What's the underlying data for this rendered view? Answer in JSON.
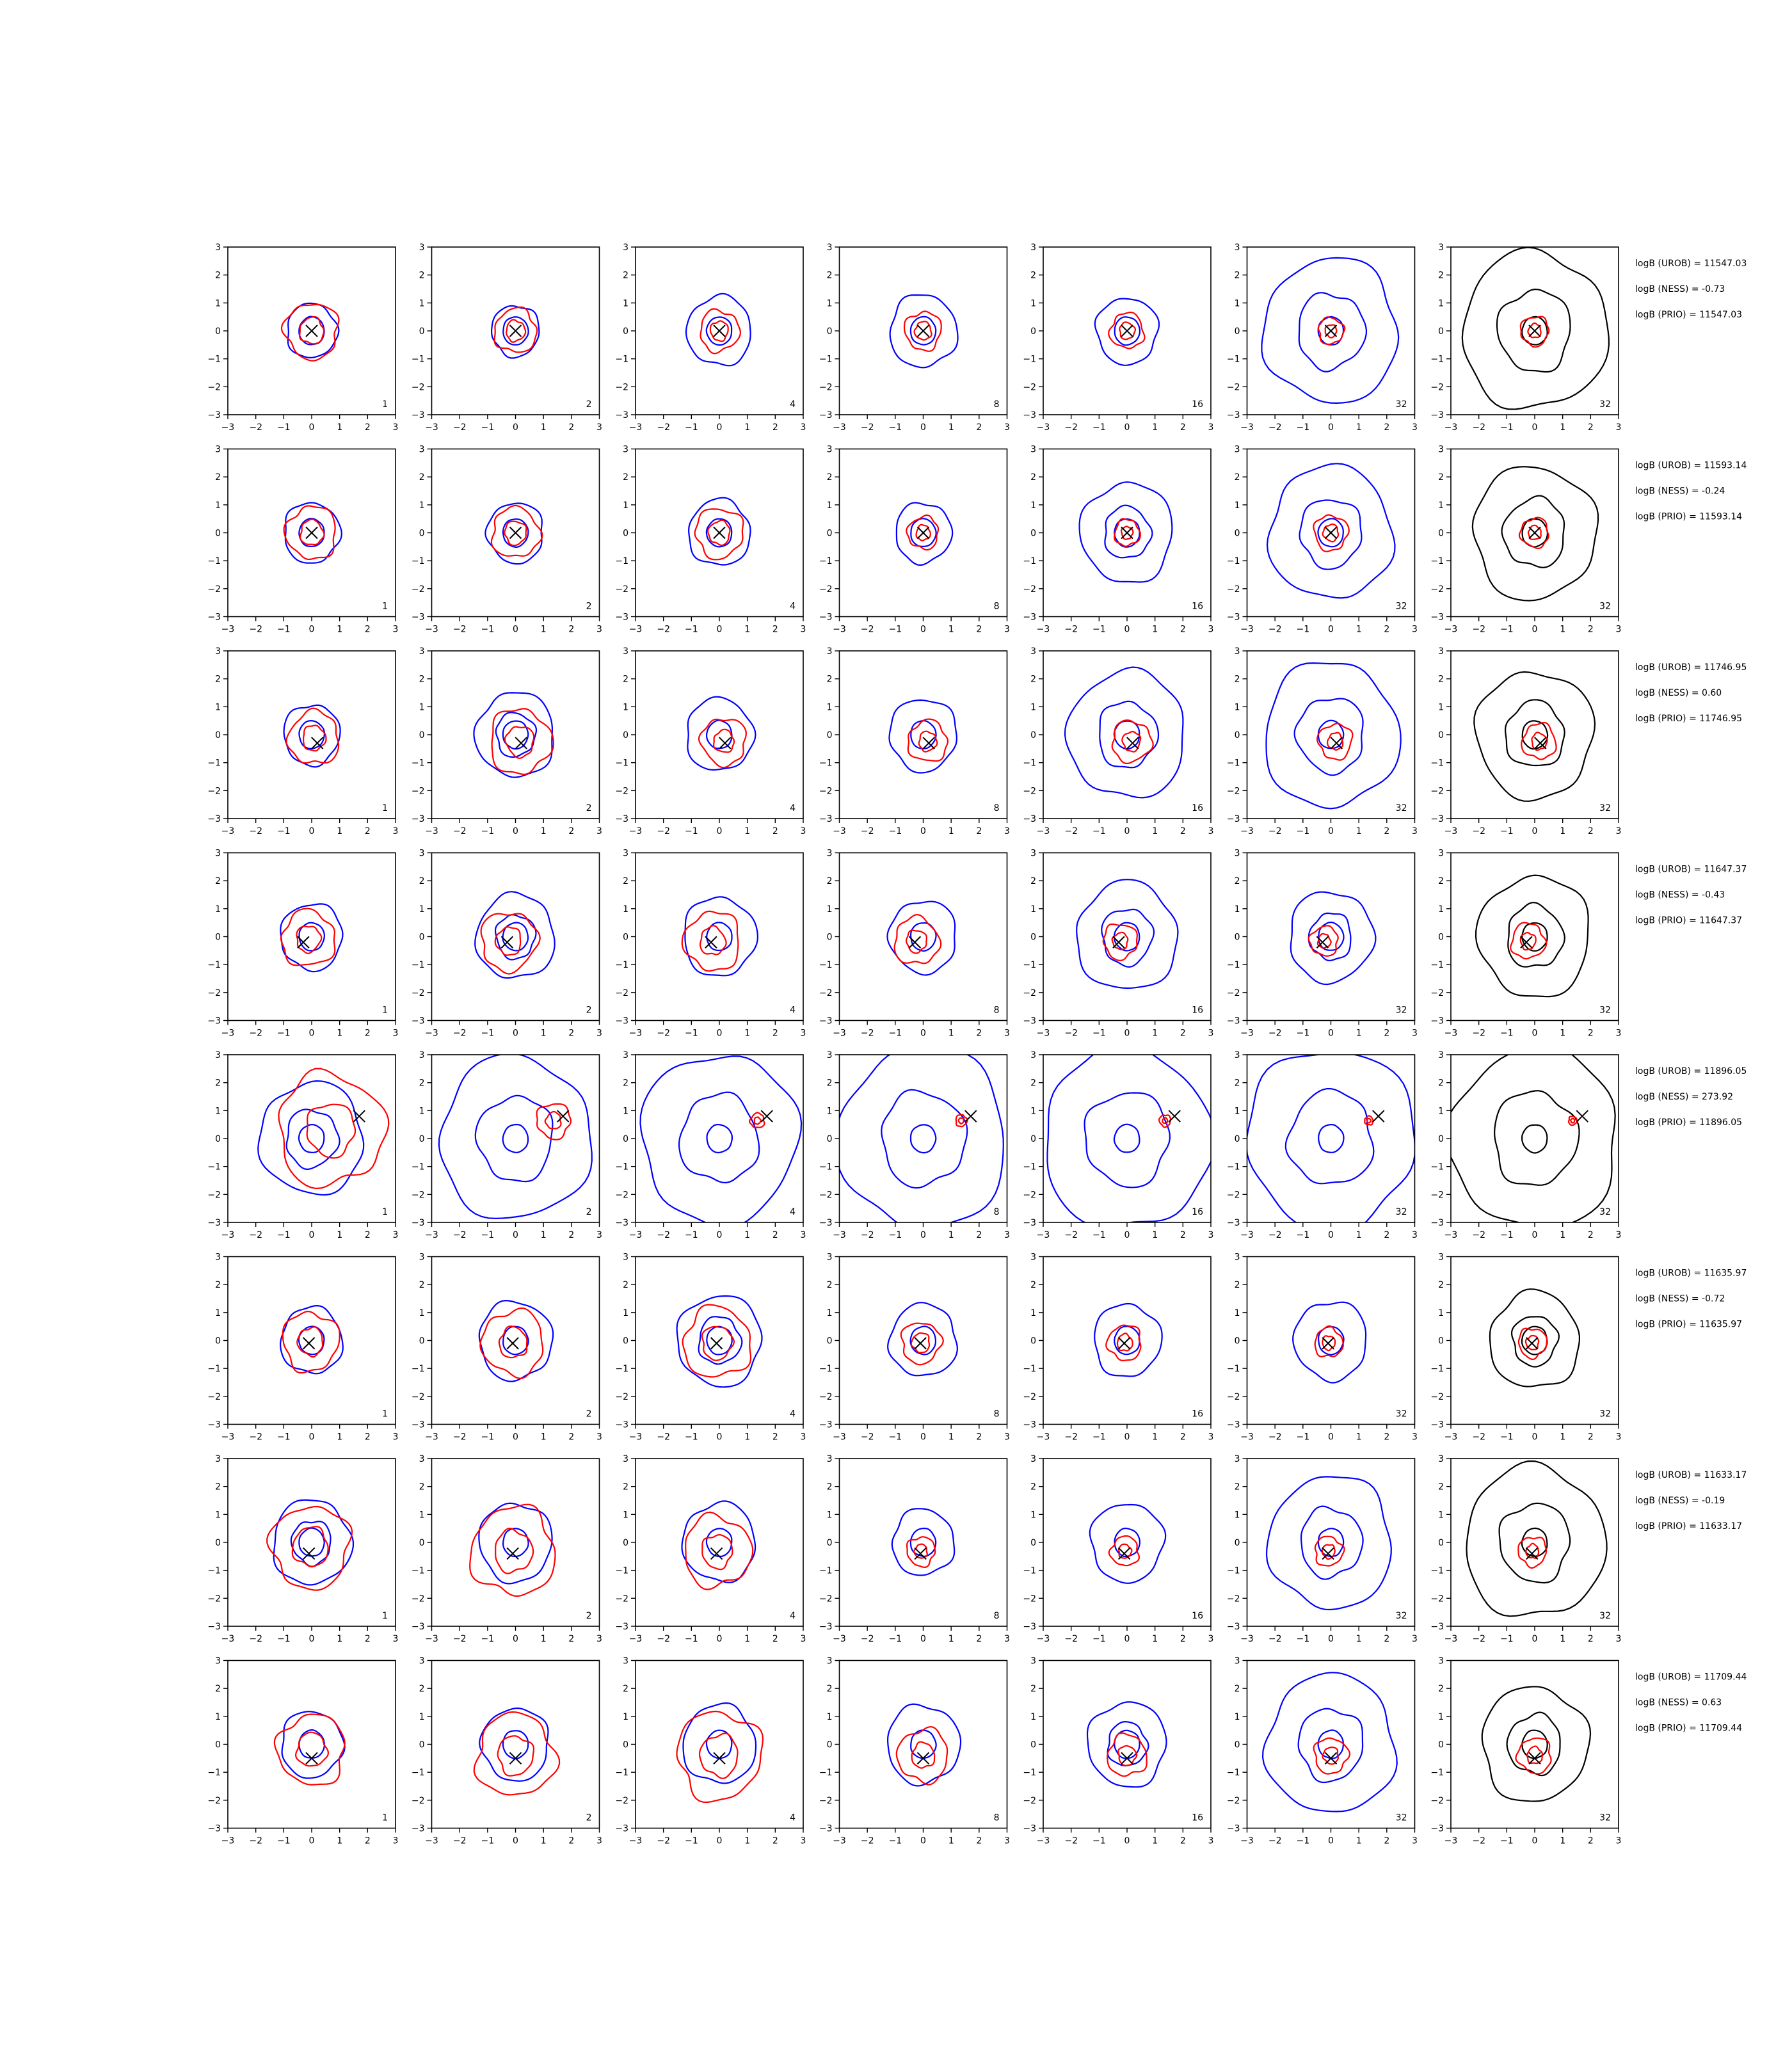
{
  "chart_data": {
    "type": "contour-grid",
    "xlim": [
      -3,
      3
    ],
    "ylim": [
      -3,
      3
    ],
    "xticks": [
      -3,
      -2,
      -1,
      0,
      1,
      2,
      3
    ],
    "yticks": [
      -3,
      -2,
      -1,
      0,
      1,
      2,
      3
    ],
    "grid": false,
    "columns": [
      {
        "label": "1",
        "color": "#0000ff"
      },
      {
        "label": "2",
        "color": "#0000ff"
      },
      {
        "label": "4",
        "color": "#0000ff"
      },
      {
        "label": "8",
        "color": "#0000ff"
      },
      {
        "label": "16",
        "color": "#0000ff"
      },
      {
        "label": "32",
        "color": "#0000ff"
      },
      {
        "label": "32",
        "color": "#000000"
      }
    ],
    "inner_color": "#ff0000",
    "marker_color": "#000000",
    "rows": [
      {
        "marker": [
          0.0,
          0.0
        ],
        "blue_sizes": [
          0.9,
          0.85,
          1.15,
          1.2,
          1.1,
          2.4,
          2.6
        ],
        "red_sizes": [
          0.95,
          0.75,
          0.7,
          0.65,
          0.6,
          0.45,
          0.5
        ],
        "annotations": [
          "logB (UROB) = 11547.03",
          "logB (NESS) = -0.73",
          "logB (PRIO) = 11547.03"
        ]
      },
      {
        "marker": [
          0.0,
          0.0
        ],
        "blue_sizes": [
          1.0,
          1.0,
          1.1,
          1.0,
          1.65,
          2.2,
          2.2
        ],
        "red_sizes": [
          0.9,
          0.85,
          0.85,
          0.55,
          0.45,
          0.6,
          0.5
        ],
        "annotations": [
          "logB (UROB) = 11593.14",
          "logB (NESS) = -0.24",
          "logB (PRIO) = 11593.14"
        ]
      },
      {
        "marker": [
          0.2,
          -0.3
        ],
        "blue_sizes": [
          1.0,
          1.4,
          1.2,
          1.2,
          2.1,
          2.4,
          2.1
        ],
        "red_sizes": [
          0.9,
          1.1,
          0.8,
          0.7,
          0.7,
          0.6,
          0.6
        ],
        "annotations": [
          "logB (UROB) = 11746.95",
          "logB (NESS) = 0.60",
          "logB (PRIO) = 11746.95"
        ]
      },
      {
        "marker": [
          -0.3,
          -0.2
        ],
        "blue_sizes": [
          1.1,
          1.4,
          1.3,
          1.2,
          1.8,
          1.5,
          2.0
        ],
        "red_sizes": [
          0.95,
          1.0,
          1.0,
          0.8,
          0.6,
          0.5,
          0.6
        ],
        "annotations": [
          "logB (UROB) = 11647.37",
          "logB (NESS) = -0.43",
          "logB (PRIO) = 11647.37"
        ]
      },
      {
        "marker": [
          1.7,
          0.8
        ],
        "blue_sizes": [
          1.85,
          2.7,
          2.8,
          3.0,
          3.0,
          3.0,
          3.0
        ],
        "red_sizes": [
          1.9,
          0.6,
          0.25,
          0.2,
          0.2,
          0.15,
          0.15
        ],
        "annotations": [
          "logB (UROB) = 11896.05",
          "logB (NESS) = 273.92",
          "logB (PRIO) = 11896.05"
        ]
      },
      {
        "marker": [
          -0.1,
          -0.1
        ],
        "blue_sizes": [
          1.1,
          1.3,
          1.5,
          1.2,
          1.2,
          1.3,
          1.6
        ],
        "red_sizes": [
          1.0,
          1.1,
          1.2,
          0.7,
          0.6,
          0.5,
          0.5
        ],
        "annotations": [
          "logB (UROB) = 11635.97",
          "logB (NESS) = -0.72",
          "logB (PRIO) = 11635.97"
        ]
      },
      {
        "marker": [
          -0.1,
          -0.4
        ],
        "blue_sizes": [
          1.4,
          1.3,
          1.3,
          1.1,
          1.3,
          2.2,
          2.5
        ],
        "red_sizes": [
          1.4,
          1.5,
          1.2,
          0.5,
          0.5,
          0.5,
          0.5
        ],
        "annotations": [
          "logB (UROB) = 11633.17",
          "logB (NESS) = -0.19",
          "logB (PRIO) = 11633.17"
        ]
      },
      {
        "marker": [
          0.0,
          -0.5
        ],
        "blue_sizes": [
          1.1,
          1.2,
          1.3,
          1.3,
          1.4,
          2.3,
          1.9
        ],
        "red_sizes": [
          1.2,
          1.4,
          1.5,
          0.9,
          0.7,
          0.6,
          0.6
        ],
        "annotations": [
          "logB (UROB) = 11709.44",
          "logB (NESS) = 0.63",
          "logB (PRIO) = 11709.44"
        ]
      }
    ]
  }
}
